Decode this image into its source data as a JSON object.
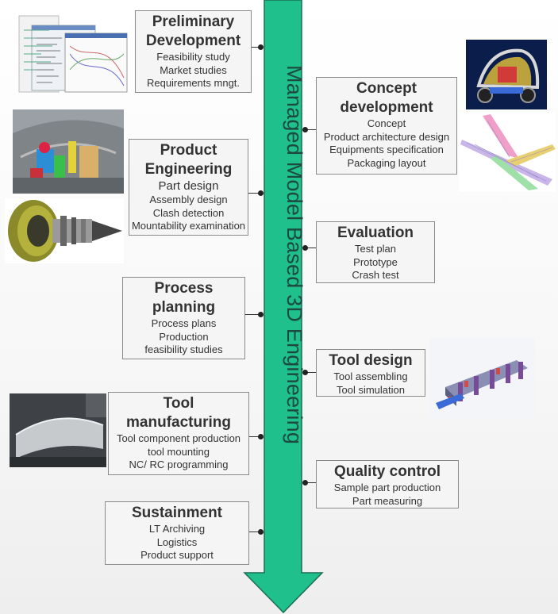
{
  "spine": {
    "label": "Managed Model Based 3D Engineering",
    "color": "#1fc08c"
  },
  "left_stages": [
    {
      "title": "Preliminary\nDevelopment",
      "items": [
        "Feasibility study",
        "Market studies",
        "Requirements mngt."
      ]
    },
    {
      "title": "Product\nEngineering",
      "items": [
        "Part design",
        "Assembly design",
        "Clash detection",
        "Mountability examination"
      ]
    },
    {
      "title": "Process\nplanning",
      "items": [
        "Process plans",
        "Production",
        "feasibility studies"
      ]
    },
    {
      "title": "Tool\nmanufacturing",
      "items": [
        "Tool component production",
        "tool mounting",
        "NC/ RC programming"
      ]
    },
    {
      "title": "Sustainment",
      "items": [
        "LT Archiving",
        "Logistics",
        "Product support"
      ]
    }
  ],
  "right_stages": [
    {
      "title": "Concept\ndevelopment",
      "items": [
        "Concept",
        "Product architecture design",
        "Equipments specification",
        "Packaging layout"
      ]
    },
    {
      "title": "Evaluation",
      "items": [
        "Test plan",
        "Prototype",
        "Crash test"
      ]
    },
    {
      "title": "Tool design",
      "items": [
        "Tool assembling",
        "Tool simulation"
      ]
    },
    {
      "title": "Quality  control",
      "items": [
        "Sample part production",
        "Part measuring"
      ]
    }
  ]
}
